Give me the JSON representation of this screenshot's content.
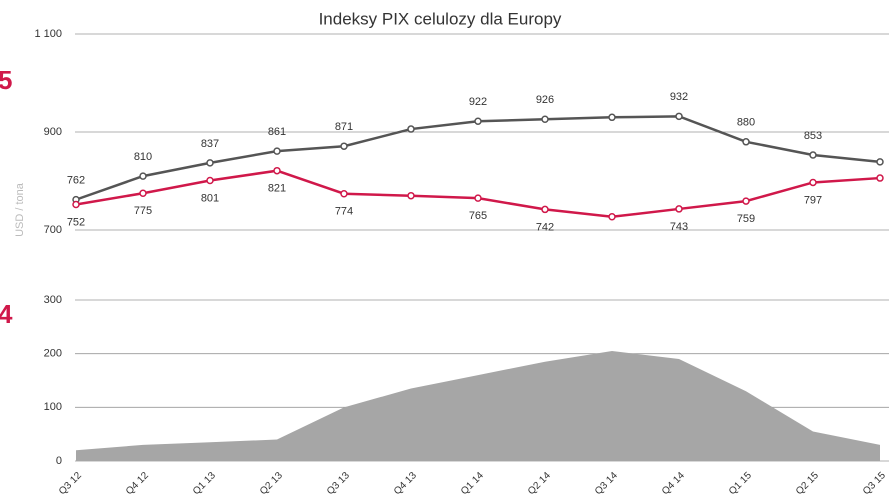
{
  "chart_data": [
    {
      "type": "line",
      "title": "Indeksy PIX celulozy dla Europy",
      "ylabel": "USD / tona",
      "annotation": "5",
      "ylim": [
        700,
        1100
      ],
      "yticks": [
        700,
        900,
        {
          "value": 1100,
          "label": "1 100"
        }
      ],
      "grid": true,
      "series": [
        {
          "name": "gray",
          "color": "#555555",
          "values": [
            762,
            810,
            837,
            861,
            871,
            906,
            922,
            926,
            930,
            932,
            880,
            853,
            839
          ],
          "value_labels": [
            "762",
            "810",
            "837",
            "861",
            "871",
            null,
            "922",
            "926",
            null,
            "932",
            "880",
            "853",
            null
          ]
        },
        {
          "name": "red",
          "color": "#d0184a",
          "values": [
            752,
            775,
            801,
            821,
            774,
            770,
            765,
            742,
            727,
            743,
            759,
            797,
            806
          ],
          "value_labels": [
            "752",
            "775",
            "801",
            "821",
            "774",
            null,
            "765",
            "742",
            null,
            "743",
            "759",
            "797",
            null
          ]
        }
      ]
    },
    {
      "type": "area",
      "annotation": "4",
      "color": "#a6a6a6",
      "categories": [
        "Q3 12",
        "Q4 12",
        "Q1 13",
        "Q2 13",
        "Q3 13",
        "Q4 13",
        "Q1 14",
        "Q2 14",
        "Q3 14",
        "Q4 14",
        "Q1 15",
        "Q2 15",
        "Q3 15"
      ],
      "values": [
        20,
        30,
        35,
        40,
        100,
        135,
        160,
        185,
        205,
        190,
        130,
        55,
        30
      ],
      "ylim": [
        0,
        300
      ],
      "yticks": [
        0,
        100,
        200,
        300
      ],
      "grid": true
    }
  ]
}
